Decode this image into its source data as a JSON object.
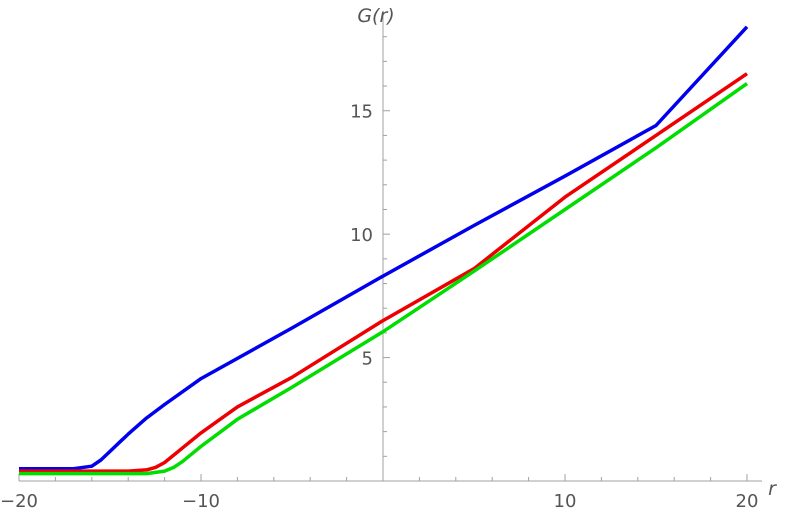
{
  "chart_data": {
    "type": "line",
    "title": "",
    "xlabel": "r",
    "ylabel": "G(r)",
    "xlim": [
      -20,
      20
    ],
    "ylim": [
      0,
      19
    ],
    "grid": false,
    "x_ticks": [
      {
        "value": -20,
        "label": "−20"
      },
      {
        "value": -10,
        "label": "−10"
      },
      {
        "value": 10,
        "label": "10"
      },
      {
        "value": 20,
        "label": "20"
      }
    ],
    "y_ticks": [
      {
        "value": 5,
        "label": "5"
      },
      {
        "value": 10,
        "label": "10"
      },
      {
        "value": 15,
        "label": "15"
      }
    ],
    "series": [
      {
        "color": "#0000ee",
        "x": [
          -20,
          -17,
          -16,
          -15.5,
          -15,
          -14.5,
          -14,
          -13,
          -12,
          -10,
          -5,
          0,
          5,
          10,
          15,
          20
        ],
        "y": [
          0.5,
          0.5,
          0.6,
          0.85,
          1.2,
          1.55,
          1.9,
          2.55,
          3.1,
          4.15,
          6.2,
          8.3,
          10.35,
          12.35,
          14.4,
          18.4
        ]
      },
      {
        "color": "#ee0000",
        "x": [
          -20,
          -14,
          -13,
          -12.5,
          -12,
          -11.5,
          -11,
          -10,
          -8,
          -5,
          0,
          5,
          10,
          15,
          20
        ],
        "y": [
          0.4,
          0.4,
          0.45,
          0.55,
          0.75,
          1.05,
          1.35,
          1.95,
          3.0,
          4.2,
          6.5,
          8.6,
          11.5,
          14.0,
          16.5
        ]
      },
      {
        "color": "#00dd00",
        "x": [
          -20,
          -13,
          -12,
          -11.5,
          -11,
          -10.5,
          -10,
          -8,
          -5,
          0,
          5,
          10,
          15,
          20
        ],
        "y": [
          0.3,
          0.3,
          0.4,
          0.55,
          0.8,
          1.1,
          1.4,
          2.5,
          3.8,
          6.05,
          8.5,
          11.0,
          13.5,
          16.1
        ]
      }
    ]
  }
}
